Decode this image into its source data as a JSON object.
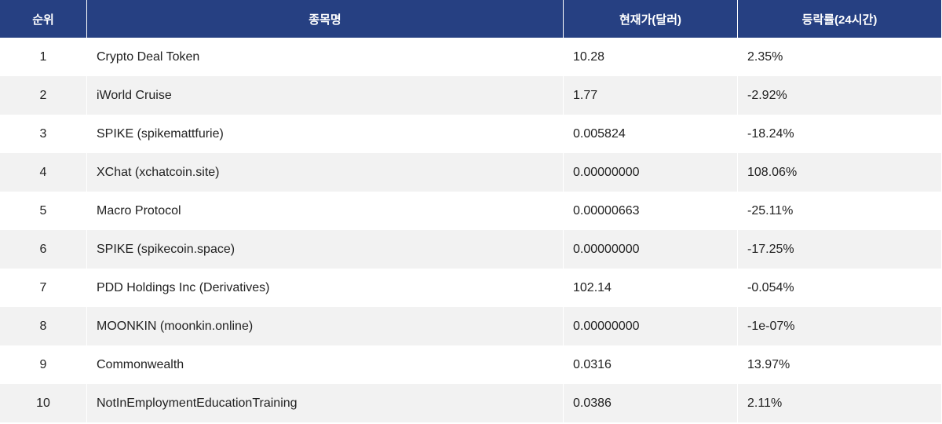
{
  "table": {
    "headers": [
      "순위",
      "종목명",
      "현재가(달러)",
      "등락률(24시간)"
    ],
    "rows": [
      {
        "rank": "1",
        "name": "Crypto Deal Token",
        "price": "10.28",
        "change": "2.35%"
      },
      {
        "rank": "2",
        "name": "iWorld Cruise",
        "price": "1.77",
        "change": "-2.92%"
      },
      {
        "rank": "3",
        "name": "SPIKE (spikemattfurie)",
        "price": "0.005824",
        "change": "-18.24%"
      },
      {
        "rank": "4",
        "name": "XChat (xchatcoin.site)",
        "price": "0.00000000",
        "change": "108.06%"
      },
      {
        "rank": "5",
        "name": "Macro Protocol",
        "price": "0.00000663",
        "change": "-25.11%"
      },
      {
        "rank": "6",
        "name": "SPIKE (spikecoin.space)",
        "price": "0.00000000",
        "change": "-17.25%"
      },
      {
        "rank": "7",
        "name": "PDD Holdings Inc (Derivatives)",
        "price": "102.14",
        "change": "-0.054%"
      },
      {
        "rank": "8",
        "name": "MOONKIN (moonkin.online)",
        "price": "0.00000000",
        "change": "-1e-07%"
      },
      {
        "rank": "9",
        "name": "Commonwealth",
        "price": "0.0316",
        "change": "13.97%"
      },
      {
        "rank": "10",
        "name": "NotInEmploymentEducationTraining",
        "price": "0.0386",
        "change": "2.11%"
      }
    ]
  },
  "colors": {
    "header_bg": "#264082",
    "header_text": "#ffffff",
    "alt_row_bg": "#f2f2f2"
  }
}
